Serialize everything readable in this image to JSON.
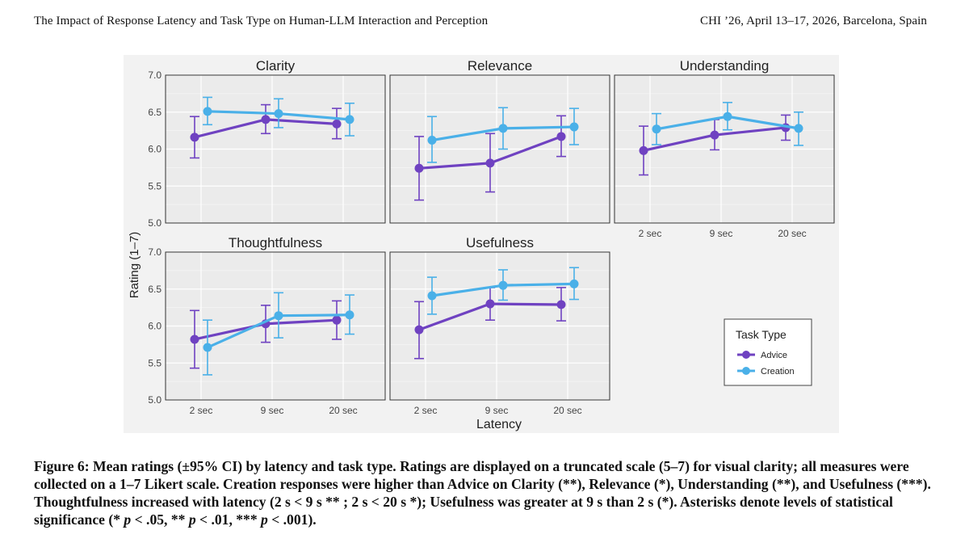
{
  "header": {
    "left": "The Impact of Response Latency and Task Type on Human-LLM Interaction and Perception",
    "right": "CHI ’26, April 13–17, 2026, Barcelona, Spain"
  },
  "colors": {
    "advice": "#6f42c1",
    "creation": "#4ab0e8",
    "panel_bg": "#ebebeb",
    "figure_bg": "#f2f2f2"
  },
  "chart_data": {
    "type": "line",
    "xlabel": "Latency",
    "ylabel": "Rating (1–7)",
    "categories": [
      "2 sec",
      "9 sec",
      "20 sec"
    ],
    "ylim": [
      5.0,
      7.0
    ],
    "yticks": [
      "5.0",
      "5.5",
      "6.0",
      "6.5",
      "7.0"
    ],
    "grid": true,
    "legend": {
      "title": "Task Type",
      "entries": [
        "Advice",
        "Creation"
      ],
      "placement": "bottom-right"
    },
    "panels": [
      {
        "title": "Clarity",
        "series": [
          {
            "name": "Advice",
            "values": [
              6.16,
              6.4,
              6.34
            ],
            "ci_low": [
              5.88,
              6.21,
              6.14
            ],
            "ci_high": [
              6.44,
              6.6,
              6.55
            ]
          },
          {
            "name": "Creation",
            "values": [
              6.51,
              6.48,
              6.4
            ],
            "ci_low": [
              6.33,
              6.29,
              6.18
            ],
            "ci_high": [
              6.7,
              6.68,
              6.62
            ]
          }
        ]
      },
      {
        "title": "Relevance",
        "series": [
          {
            "name": "Advice",
            "values": [
              5.74,
              5.81,
              6.17
            ],
            "ci_low": [
              5.31,
              5.42,
              5.9
            ],
            "ci_high": [
              6.17,
              6.21,
              6.45
            ]
          },
          {
            "name": "Creation",
            "values": [
              6.12,
              6.28,
              6.3
            ],
            "ci_low": [
              5.82,
              6.0,
              6.06
            ],
            "ci_high": [
              6.44,
              6.56,
              6.55
            ]
          }
        ]
      },
      {
        "title": "Understanding",
        "series": [
          {
            "name": "Advice",
            "values": [
              5.98,
              6.19,
              6.29
            ],
            "ci_low": [
              5.65,
              5.99,
              6.12
            ],
            "ci_high": [
              6.31,
              6.4,
              6.46
            ]
          },
          {
            "name": "Creation",
            "values": [
              6.27,
              6.44,
              6.28
            ],
            "ci_low": [
              6.06,
              6.26,
              6.05
            ],
            "ci_high": [
              6.48,
              6.63,
              6.5
            ]
          }
        ]
      },
      {
        "title": "Thoughtfulness",
        "series": [
          {
            "name": "Advice",
            "values": [
              5.82,
              6.03,
              6.08
            ],
            "ci_low": [
              5.43,
              5.78,
              5.82
            ],
            "ci_high": [
              6.21,
              6.28,
              6.34
            ]
          },
          {
            "name": "Creation",
            "values": [
              5.71,
              6.14,
              6.15
            ],
            "ci_low": [
              5.34,
              5.84,
              5.89
            ],
            "ci_high": [
              6.08,
              6.45,
              6.42
            ]
          }
        ]
      },
      {
        "title": "Usefulness",
        "series": [
          {
            "name": "Advice",
            "values": [
              5.95,
              6.3,
              6.29
            ],
            "ci_low": [
              5.56,
              6.08,
              6.07
            ],
            "ci_high": [
              6.33,
              6.52,
              6.52
            ]
          },
          {
            "name": "Creation",
            "values": [
              6.41,
              6.55,
              6.57
            ],
            "ci_low": [
              6.16,
              6.35,
              6.36
            ],
            "ci_high": [
              6.66,
              6.76,
              6.79
            ]
          }
        ]
      }
    ]
  },
  "caption": {
    "figure_label": "Figure 6:",
    "text_a": " Mean ratings (±95% CI) by latency and task type. Ratings are displayed on a truncated scale (5–7) for visual clarity; all measures were collected on a 1–7 Likert scale. Creation responses were higher than Advice on Clarity (**), Relevance (*), Understanding (**), and Usefulness (***). Thoughtfulness increased with latency (2 s < 9 s ** ; 2 s < 20 s *); Usefulness was greater at 9 s than 2 s (*). Asterisks denote levels of statistical significance (* ",
    "p1": "p",
    "text_b": " < .05, ** ",
    "p2": "p",
    "text_c": " < .01, *** ",
    "p3": "p",
    "text_d": " < .001)."
  }
}
